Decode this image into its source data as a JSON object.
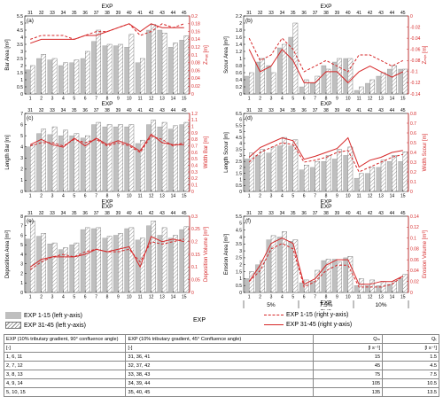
{
  "domain": "Chart",
  "chart_data": [
    {
      "panel": "(a)",
      "type": "bar",
      "top_label": "EXP",
      "ylabel": "Bar Area [m²]",
      "ylabel_right": "Zₘₐₓ [m]",
      "ylim": [
        0,
        5.5
      ],
      "yticks": [
        0,
        0.5,
        1,
        1.5,
        2,
        2.5,
        3,
        3.5,
        4,
        4.5,
        5,
        5.5
      ],
      "y2lim": [
        0,
        0.2
      ],
      "y2ticks": [
        0,
        0.02,
        0.04,
        0.06,
        0.08,
        0.1,
        0.12,
        0.14,
        0.16,
        0.18,
        0.2
      ],
      "series": [
        {
          "name": "EXP 1-15 (left y-axis)",
          "values": [
            1.7,
            2.5,
            2.4,
            2.0,
            2.2,
            2.5,
            3.7,
            3.4,
            3.4,
            3.3,
            2.2,
            4.5,
            4.5,
            3.3,
            3.8
          ]
        },
        {
          "name": "EXP 31-45 (left y-axis)",
          "values": [
            2.0,
            2.8,
            2.5,
            2.2,
            2.4,
            3.0,
            4.5,
            3.5,
            3.5,
            4.2,
            2.5,
            4.9,
            4.3,
            3.6,
            4.1
          ]
        },
        {
          "name": "EXP 1-15 (right y-axis)",
          "values": [
            0.14,
            0.15,
            0.15,
            0.15,
            0.14,
            0.15,
            0.16,
            0.16,
            0.17,
            0.18,
            0.15,
            0.16,
            0.18,
            0.17,
            0.18
          ]
        },
        {
          "name": "EXP 31-45 (right y-axis)",
          "values": [
            0.13,
            0.14,
            0.14,
            0.14,
            0.14,
            0.15,
            0.15,
            0.16,
            0.17,
            0.18,
            0.16,
            0.18,
            0.17,
            0.17,
            0.17
          ]
        }
      ]
    },
    {
      "panel": "(b)",
      "type": "bar",
      "top_label": "EXP",
      "ylabel": "Scour Area [m²]",
      "ylabel_right": "Zₘᵢₙ [m]",
      "ylim": [
        0,
        2.2
      ],
      "yticks": [
        0,
        0.2,
        0.4,
        0.6,
        0.8,
        1,
        1.2,
        1.4,
        1.6,
        1.8,
        2,
        2.2
      ],
      "y2lim": [
        -0.14,
        0
      ],
      "y2ticks": [
        -0.14,
        -0.12,
        -0.1,
        -0.08,
        -0.06,
        -0.04,
        -0.02,
        0
      ],
      "series": [
        {
          "name": "EXP 1-15 (left y-axis)",
          "values": [
            0.5,
            0.9,
            0.8,
            1.3,
            1.6,
            0.2,
            0.3,
            0.8,
            0.9,
            1.0,
            0.1,
            0.3,
            0.5,
            0.7,
            0.7
          ]
        },
        {
          "name": "EXP 31-45 (left y-axis)",
          "values": [
            0.6,
            1.0,
            0.6,
            1.4,
            2.0,
            0.4,
            0.5,
            0.7,
            1.0,
            1.0,
            0.2,
            0.4,
            0.6,
            0.8,
            0.7
          ]
        },
        {
          "name": "EXP 1-15 (right y-axis)",
          "values": [
            -0.04,
            -0.08,
            -0.07,
            -0.04,
            -0.06,
            -0.1,
            -0.09,
            -0.08,
            -0.09,
            -0.1,
            -0.07,
            -0.07,
            -0.08,
            -0.09,
            -0.08
          ]
        },
        {
          "name": "EXP 31-45 (right y-axis)",
          "values": [
            -0.06,
            -0.1,
            -0.09,
            -0.06,
            -0.08,
            -0.12,
            -0.12,
            -0.1,
            -0.1,
            -0.12,
            -0.1,
            -0.09,
            -0.1,
            -0.11,
            -0.1
          ]
        }
      ]
    },
    {
      "panel": "(c)",
      "type": "bar",
      "top_label": "EXP",
      "bottom_label": "EXP",
      "ylabel": "Length Bar [m]",
      "ylabel_right": "Width Bar [m]",
      "ylim": [
        0,
        7
      ],
      "yticks": [
        0,
        1,
        2,
        3,
        4,
        5,
        6,
        7
      ],
      "y2lim": [
        0,
        1.2
      ],
      "y2ticks": [
        0,
        0.1,
        0.2,
        0.3,
        0.4,
        0.5,
        0.6,
        0.7,
        0.8,
        0.9,
        1,
        1.1,
        1.2
      ],
      "series": [
        {
          "name": "EXP 1-15 (left y-axis)",
          "values": [
            4.0,
            5.2,
            5.1,
            5.0,
            5.0,
            4.8,
            6.0,
            5.8,
            5.8,
            5.8,
            4.3,
            6.0,
            5.8,
            5.6,
            6.0
          ]
        },
        {
          "name": "EXP 31-45 (left y-axis)",
          "values": [
            4.2,
            5.6,
            5.8,
            5.5,
            5.2,
            5.0,
            6.2,
            6.0,
            6.0,
            6.0,
            4.6,
            6.4,
            6.2,
            5.9,
            6.2
          ]
        },
        {
          "name": "EXP 1-15 (right y-axis)",
          "values": [
            0.7,
            0.75,
            0.75,
            0.7,
            0.8,
            0.75,
            0.8,
            0.7,
            0.75,
            0.7,
            0.6,
            0.85,
            0.8,
            0.7,
            0.75
          ]
        },
        {
          "name": "EXP 31-45 (right y-axis)",
          "values": [
            0.72,
            0.8,
            0.72,
            0.68,
            0.82,
            0.7,
            0.82,
            0.72,
            0.78,
            0.72,
            0.62,
            0.88,
            0.75,
            0.72,
            0.72
          ]
        }
      ]
    },
    {
      "panel": "(d)",
      "type": "bar",
      "top_label": "EXP",
      "bottom_label": "EXP",
      "ylabel": "Length Scour [m]",
      "ylabel_right": "Width Scour [m]",
      "ylim": [
        0,
        6.5
      ],
      "yticks": [
        0,
        0.5,
        1,
        1.5,
        2,
        2.5,
        3,
        3.5,
        4,
        4.5,
        5,
        5.5,
        6,
        6.5
      ],
      "y2lim": [
        0,
        0.8
      ],
      "y2ticks": [
        0,
        0.1,
        0.2,
        0.3,
        0.4,
        0.5,
        0.6,
        0.7,
        0.8
      ],
      "series": [
        {
          "name": "EXP 1-15 (left y-axis)",
          "values": [
            2.7,
            3.0,
            3.2,
            3.8,
            3.8,
            1.8,
            2.0,
            2.5,
            2.7,
            3.0,
            1.1,
            1.5,
            2.0,
            2.5,
            2.5
          ]
        },
        {
          "name": "EXP 31-45 (left y-axis)",
          "values": [
            3.2,
            3.5,
            3.7,
            4.5,
            4.3,
            2.2,
            2.5,
            3.0,
            3.5,
            3.7,
            1.5,
            2.0,
            2.6,
            3.0,
            3.3
          ]
        },
        {
          "name": "EXP 1-15 (right y-axis)",
          "values": [
            0.3,
            0.4,
            0.45,
            0.5,
            0.48,
            0.3,
            0.32,
            0.35,
            0.4,
            0.42,
            0.2,
            0.25,
            0.3,
            0.35,
            0.38
          ]
        },
        {
          "name": "EXP 31-45 (right y-axis)",
          "values": [
            0.35,
            0.45,
            0.5,
            0.55,
            0.52,
            0.33,
            0.36,
            0.4,
            0.44,
            0.55,
            0.25,
            0.32,
            0.35,
            0.4,
            0.42
          ]
        }
      ]
    },
    {
      "panel": "(e)",
      "type": "bar",
      "top_label": "EXP",
      "ylabel": "Deposition Area [m²]",
      "ylabel_right": "Deposition Volume [m³]",
      "ylim": [
        0,
        8
      ],
      "yticks": [
        0,
        1,
        2,
        3,
        4,
        5,
        6,
        7,
        8
      ],
      "y2lim": [
        0,
        0.3
      ],
      "y2ticks": [
        0,
        0.05,
        0.1,
        0.15,
        0.2,
        0.25,
        0.3
      ],
      "series": [
        {
          "name": "EXP 1-15 (left y-axis)",
          "values": [
            5.6,
            5.9,
            5.1,
            4.5,
            5.0,
            6.6,
            6.7,
            5.7,
            6.0,
            6.7,
            5.5,
            7.0,
            6.0,
            5.7,
            6.6
          ]
        },
        {
          "name": "EXP 31-45 (left y-axis)",
          "values": [
            7.5,
            6.2,
            5.2,
            4.7,
            5.2,
            6.8,
            6.8,
            5.9,
            6.2,
            6.8,
            5.7,
            7.5,
            6.8,
            6.0,
            6.9
          ]
        },
        {
          "name": "EXP 1-15 (right y-axis)",
          "values": [
            0.09,
            0.12,
            0.14,
            0.15,
            0.14,
            0.16,
            0.17,
            0.16,
            0.16,
            0.17,
            0.12,
            0.2,
            0.19,
            0.2,
            0.21
          ]
        },
        {
          "name": "EXP 31-45 (right y-axis)",
          "values": [
            0.1,
            0.13,
            0.14,
            0.14,
            0.14,
            0.15,
            0.17,
            0.16,
            0.17,
            0.18,
            0.1,
            0.22,
            0.2,
            0.21,
            0.2
          ]
        }
      ]
    },
    {
      "panel": "(f)",
      "type": "bar",
      "top_label": "EXP",
      "bottom_label": "EXP",
      "ylabel": "Erosion Area [m²]",
      "ylabel_right": "Erosion Volume [m³]",
      "ylim": [
        0,
        5.5
      ],
      "yticks": [
        0,
        0.5,
        1,
        1.5,
        2,
        2.5,
        3,
        3.5,
        4,
        4.5,
        5,
        5.5
      ],
      "y2lim": [
        0,
        0.14
      ],
      "y2ticks": [
        0,
        0.02,
        0.04,
        0.06,
        0.08,
        0.1,
        0.12,
        0.14
      ],
      "group_labels": [
        "5%",
        "7.5%",
        "10%"
      ],
      "series": [
        {
          "name": "EXP 1-15 (left y-axis)",
          "values": [
            1.0,
            2.0,
            3.8,
            4.0,
            3.7,
            0.7,
            0.8,
            2.3,
            2.4,
            2.5,
            0.5,
            0.5,
            0.5,
            0.6,
            1.0
          ]
        },
        {
          "name": "EXP 31-45 (left y-axis)",
          "values": [
            1.5,
            2.3,
            4.1,
            4.4,
            3.8,
            0.9,
            1.6,
            2.4,
            2.2,
            2.6,
            1.0,
            0.9,
            0.8,
            0.8,
            1.3
          ]
        },
        {
          "name": "EXP 1-15 (right y-axis)",
          "values": [
            0.02,
            0.04,
            0.08,
            0.09,
            0.08,
            0.01,
            0.02,
            0.04,
            0.05,
            0.05,
            0.01,
            0.01,
            0.01,
            0.015,
            0.03
          ]
        },
        {
          "name": "EXP 31-45 (right y-axis)",
          "values": [
            0.02,
            0.05,
            0.09,
            0.1,
            0.09,
            0.015,
            0.025,
            0.05,
            0.06,
            0.06,
            0.015,
            0.015,
            0.02,
            0.02,
            0.03
          ]
        }
      ]
    }
  ],
  "axis_ticks": {
    "bottom": [
      "1",
      "2",
      "3",
      "4",
      "5",
      "6",
      "7",
      "8",
      "9",
      "10",
      "11",
      "12",
      "13",
      "14",
      "15"
    ],
    "top": [
      "31",
      "32",
      "33",
      "34",
      "35",
      "36",
      "37",
      "38",
      "39",
      "40",
      "41",
      "42",
      "43",
      "44",
      "45"
    ]
  },
  "colors": {
    "bar": "#bfbfbf",
    "line": "#d62728",
    "axis_right": "#d62728"
  },
  "legend": {
    "bar_solid": "EXP 1-15 (left y-axis)",
    "bar_hatch": "EXP 31-45 (left y-axis)",
    "line_dashed": "EXP 1-15 (right y-axis)",
    "line_solid": "EXP 31-45 (right y-axis)",
    "center_label": "EXP"
  },
  "table": {
    "headers": [
      "EXP (10% tributary gradient, 90° confluence angle)",
      "EXP (10% tributary gradient, 45° Confluence angle)",
      "Qₘ",
      "Qₜ"
    ],
    "units": [
      "[-]",
      "[-]",
      "[l s⁻¹]",
      "[l s⁻¹]"
    ],
    "rows": [
      [
        "1, 6, 11",
        "31, 36, 41",
        "15",
        "1.5"
      ],
      [
        "2, 7, 12",
        "32, 37, 42",
        "45",
        "4.5"
      ],
      [
        "3, 8, 13",
        "33, 38, 43",
        "75",
        "7.5"
      ],
      [
        "4, 9, 14",
        "34, 39, 44",
        "105",
        "10.5"
      ],
      [
        "5, 10, 15",
        "35, 40, 45",
        "135",
        "13.5"
      ]
    ]
  }
}
